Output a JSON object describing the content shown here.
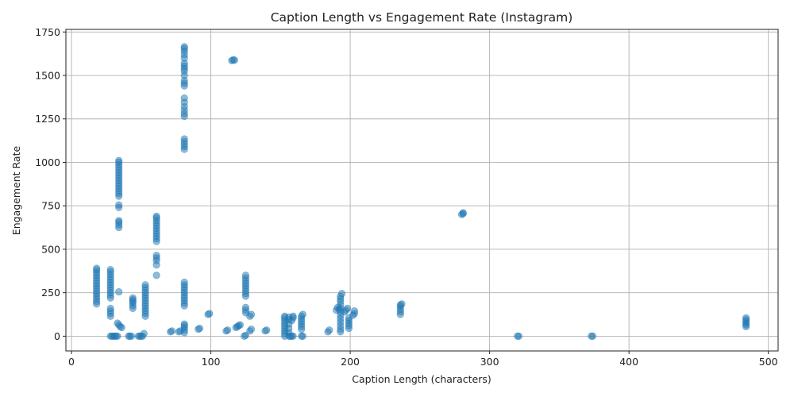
{
  "chart_data": {
    "type": "scatter",
    "title": "Caption Length vs Engagement Rate (Instagram)",
    "xlabel": "Caption Length (characters)",
    "ylabel": "Engagement Rate",
    "xlim": [
      -4,
      507
    ],
    "ylim": [
      -85,
      1765
    ],
    "xticks": [
      0,
      100,
      200,
      300,
      400,
      500
    ],
    "yticks": [
      0,
      250,
      500,
      750,
      1000,
      1250,
      1500,
      1750
    ],
    "grid": true,
    "color": "#1f77b4",
    "points": [
      [
        18,
        185
      ],
      [
        18,
        200
      ],
      [
        18,
        215
      ],
      [
        18,
        230
      ],
      [
        18,
        245
      ],
      [
        18,
        260
      ],
      [
        18,
        275
      ],
      [
        18,
        290
      ],
      [
        18,
        305
      ],
      [
        18,
        320
      ],
      [
        18,
        335
      ],
      [
        18,
        350
      ],
      [
        18,
        365
      ],
      [
        18,
        380
      ],
      [
        18,
        390
      ],
      [
        28,
        0
      ],
      [
        29,
        0
      ],
      [
        30,
        0
      ],
      [
        31,
        0
      ],
      [
        32,
        0
      ],
      [
        33,
        0
      ],
      [
        28,
        115
      ],
      [
        28,
        130
      ],
      [
        28,
        145
      ],
      [
        28,
        160
      ],
      [
        28,
        220
      ],
      [
        28,
        235
      ],
      [
        28,
        250
      ],
      [
        28,
        265
      ],
      [
        28,
        280
      ],
      [
        28,
        295
      ],
      [
        28,
        310
      ],
      [
        28,
        325
      ],
      [
        28,
        340
      ],
      [
        28,
        355
      ],
      [
        28,
        370
      ],
      [
        28,
        383
      ],
      [
        34,
        625
      ],
      [
        34,
        640
      ],
      [
        34,
        655
      ],
      [
        34,
        665
      ],
      [
        34,
        740
      ],
      [
        34,
        755
      ],
      [
        34,
        805
      ],
      [
        34,
        820
      ],
      [
        34,
        835
      ],
      [
        34,
        850
      ],
      [
        34,
        865
      ],
      [
        34,
        880
      ],
      [
        34,
        895
      ],
      [
        34,
        910
      ],
      [
        34,
        925
      ],
      [
        34,
        940
      ],
      [
        34,
        955
      ],
      [
        34,
        970
      ],
      [
        34,
        985
      ],
      [
        34,
        1000
      ],
      [
        34,
        1010
      ],
      [
        34,
        255
      ],
      [
        33,
        75
      ],
      [
        34,
        65
      ],
      [
        35,
        55
      ],
      [
        36,
        50
      ],
      [
        41,
        0
      ],
      [
        42,
        0
      ],
      [
        43,
        0
      ],
      [
        44,
        160
      ],
      [
        44,
        175
      ],
      [
        44,
        190
      ],
      [
        44,
        200
      ],
      [
        44,
        210
      ],
      [
        44,
        220
      ],
      [
        48,
        0
      ],
      [
        49,
        0
      ],
      [
        50,
        0
      ],
      [
        51,
        0
      ],
      [
        52,
        15
      ],
      [
        53,
        115
      ],
      [
        53,
        130
      ],
      [
        53,
        145
      ],
      [
        53,
        160
      ],
      [
        53,
        175
      ],
      [
        53,
        190
      ],
      [
        53,
        205
      ],
      [
        53,
        220
      ],
      [
        53,
        235
      ],
      [
        53,
        250
      ],
      [
        53,
        265
      ],
      [
        53,
        280
      ],
      [
        53,
        295
      ],
      [
        61,
        350
      ],
      [
        61,
        410
      ],
      [
        61,
        435
      ],
      [
        61,
        450
      ],
      [
        61,
        465
      ],
      [
        61,
        545
      ],
      [
        61,
        560
      ],
      [
        61,
        575
      ],
      [
        61,
        590
      ],
      [
        61,
        605
      ],
      [
        61,
        620
      ],
      [
        61,
        635
      ],
      [
        61,
        650
      ],
      [
        61,
        665
      ],
      [
        61,
        680
      ],
      [
        61,
        690
      ],
      [
        71,
        25
      ],
      [
        72,
        30
      ],
      [
        77,
        25
      ],
      [
        78,
        30
      ],
      [
        81,
        20
      ],
      [
        81,
        35
      ],
      [
        81,
        50
      ],
      [
        81,
        60
      ],
      [
        81,
        70
      ],
      [
        81,
        175
      ],
      [
        81,
        190
      ],
      [
        81,
        205
      ],
      [
        81,
        220
      ],
      [
        81,
        235
      ],
      [
        81,
        250
      ],
      [
        81,
        265
      ],
      [
        81,
        280
      ],
      [
        81,
        295
      ],
      [
        81,
        310
      ],
      [
        81,
        1075
      ],
      [
        81,
        1090
      ],
      [
        81,
        1105
      ],
      [
        81,
        1120
      ],
      [
        81,
        1135
      ],
      [
        81,
        1265
      ],
      [
        81,
        1280
      ],
      [
        81,
        1300
      ],
      [
        81,
        1320
      ],
      [
        81,
        1345
      ],
      [
        81,
        1370
      ],
      [
        81,
        1440
      ],
      [
        81,
        1455
      ],
      [
        81,
        1470
      ],
      [
        81,
        1500
      ],
      [
        81,
        1525
      ],
      [
        81,
        1540
      ],
      [
        81,
        1555
      ],
      [
        81,
        1570
      ],
      [
        81,
        1600
      ],
      [
        81,
        1620
      ],
      [
        81,
        1640
      ],
      [
        81,
        1655
      ],
      [
        81,
        1665
      ],
      [
        91,
        40
      ],
      [
        92,
        45
      ],
      [
        98,
        125
      ],
      [
        99,
        130
      ],
      [
        111,
        30
      ],
      [
        112,
        35
      ],
      [
        115,
        1585
      ],
      [
        116,
        1590
      ],
      [
        117,
        1588
      ],
      [
        118,
        50
      ],
      [
        119,
        55
      ],
      [
        120,
        60
      ],
      [
        121,
        65
      ],
      [
        124,
        0
      ],
      [
        125,
        5
      ],
      [
        125,
        135
      ],
      [
        125,
        150
      ],
      [
        125,
        165
      ],
      [
        125,
        230
      ],
      [
        125,
        245
      ],
      [
        125,
        260
      ],
      [
        125,
        275
      ],
      [
        125,
        290
      ],
      [
        125,
        305
      ],
      [
        125,
        320
      ],
      [
        125,
        335
      ],
      [
        125,
        350
      ],
      [
        128,
        30
      ],
      [
        129,
        40
      ],
      [
        128,
        115
      ],
      [
        129,
        125
      ],
      [
        139,
        30
      ],
      [
        140,
        35
      ],
      [
        153,
        0
      ],
      [
        153,
        15
      ],
      [
        153,
        30
      ],
      [
        153,
        45
      ],
      [
        153,
        60
      ],
      [
        153,
        75
      ],
      [
        153,
        90
      ],
      [
        153,
        105
      ],
      [
        153,
        115
      ],
      [
        156,
        0
      ],
      [
        156,
        20
      ],
      [
        156,
        45
      ],
      [
        156,
        70
      ],
      [
        156,
        95
      ],
      [
        156,
        110
      ],
      [
        157,
        0
      ],
      [
        158,
        0
      ],
      [
        159,
        0
      ],
      [
        158,
        90
      ],
      [
        159,
        105
      ],
      [
        159,
        115
      ],
      [
        165,
        0
      ],
      [
        166,
        0
      ],
      [
        165,
        40
      ],
      [
        165,
        55
      ],
      [
        165,
        70
      ],
      [
        165,
        85
      ],
      [
        165,
        100
      ],
      [
        165,
        115
      ],
      [
        166,
        125
      ],
      [
        184,
        25
      ],
      [
        185,
        35
      ],
      [
        190,
        150
      ],
      [
        191,
        165
      ],
      [
        192,
        155
      ],
      [
        193,
        25
      ],
      [
        193,
        40
      ],
      [
        193,
        60
      ],
      [
        193,
        80
      ],
      [
        193,
        100
      ],
      [
        193,
        120
      ],
      [
        193,
        140
      ],
      [
        193,
        160
      ],
      [
        193,
        180
      ],
      [
        193,
        200
      ],
      [
        193,
        215
      ],
      [
        193,
        230
      ],
      [
        194,
        245
      ],
      [
        196,
        140
      ],
      [
        197,
        150
      ],
      [
        198,
        160
      ],
      [
        199,
        45
      ],
      [
        199,
        60
      ],
      [
        199,
        75
      ],
      [
        199,
        90
      ],
      [
        199,
        105
      ],
      [
        202,
        120
      ],
      [
        203,
        130
      ],
      [
        203,
        145
      ],
      [
        236,
        125
      ],
      [
        236,
        140
      ],
      [
        236,
        155
      ],
      [
        236,
        170
      ],
      [
        236,
        180
      ],
      [
        237,
        185
      ],
      [
        280,
        700
      ],
      [
        281,
        705
      ],
      [
        281,
        710
      ],
      [
        320,
        0
      ],
      [
        321,
        0
      ],
      [
        373,
        0
      ],
      [
        374,
        0
      ],
      [
        484,
        55
      ],
      [
        484,
        65
      ],
      [
        484,
        75
      ],
      [
        484,
        85
      ],
      [
        484,
        95
      ],
      [
        484,
        105
      ]
    ]
  }
}
